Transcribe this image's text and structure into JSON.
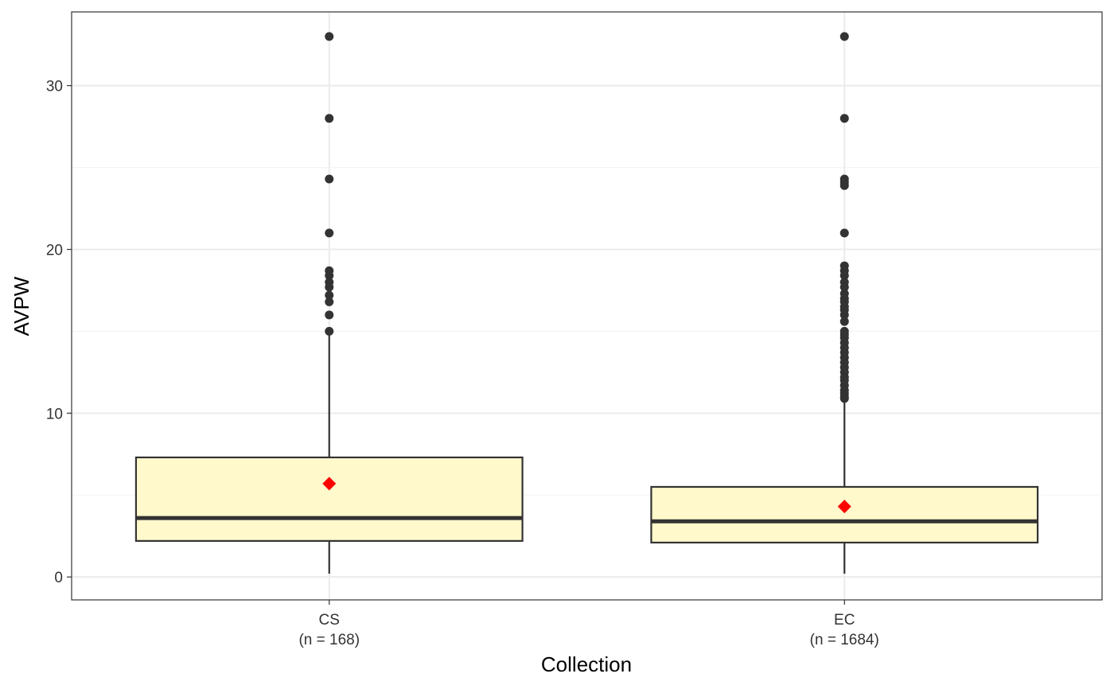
{
  "chart_data": {
    "type": "boxplot",
    "xlabel": "Collection",
    "ylabel": "AVPW",
    "ylim": [
      -1.4,
      34.5
    ],
    "yticks": [
      0,
      10,
      20,
      30
    ],
    "grid": true,
    "categories": [
      "CS",
      "EC"
    ],
    "category_notes": [
      "(n = 168)",
      "(n = 1684)"
    ],
    "boxes": [
      {
        "category": "CS",
        "n": 168,
        "whisker_low": 0.2,
        "q1": 2.2,
        "median": 3.6,
        "q3": 7.3,
        "whisker_high": 15.0,
        "mean": 5.7,
        "outliers": [
          33.0,
          28.0,
          24.3,
          21.0,
          18.7,
          18.4,
          18.0,
          17.7,
          17.2,
          16.8,
          16.0,
          15.0
        ]
      },
      {
        "category": "EC",
        "n": 1684,
        "whisker_low": 0.2,
        "q1": 2.1,
        "median": 3.4,
        "q3": 5.5,
        "whisker_high": 10.8,
        "mean": 4.3,
        "outliers": [
          33.0,
          28.0,
          24.3,
          24.1,
          23.9,
          21.0,
          19.0,
          18.7,
          18.4,
          18.0,
          17.7,
          17.3,
          17.0,
          16.8,
          16.5,
          16.3,
          16.0,
          15.6,
          15.0,
          14.8,
          14.6,
          14.3,
          14.0,
          13.7,
          13.4,
          13.1,
          12.8,
          12.5,
          12.2,
          12.0,
          11.7,
          11.4,
          11.2,
          11.0,
          10.9
        ]
      }
    ],
    "colors": {
      "box_fill": "#FFF9CC",
      "box_stroke": "#333333",
      "median": "#333333",
      "outlier": "#333333",
      "mean": "#FF0000",
      "grid_major": "#EBEBEB",
      "grid_minor": "#F4F4F4",
      "panel_border": "#333333"
    }
  }
}
